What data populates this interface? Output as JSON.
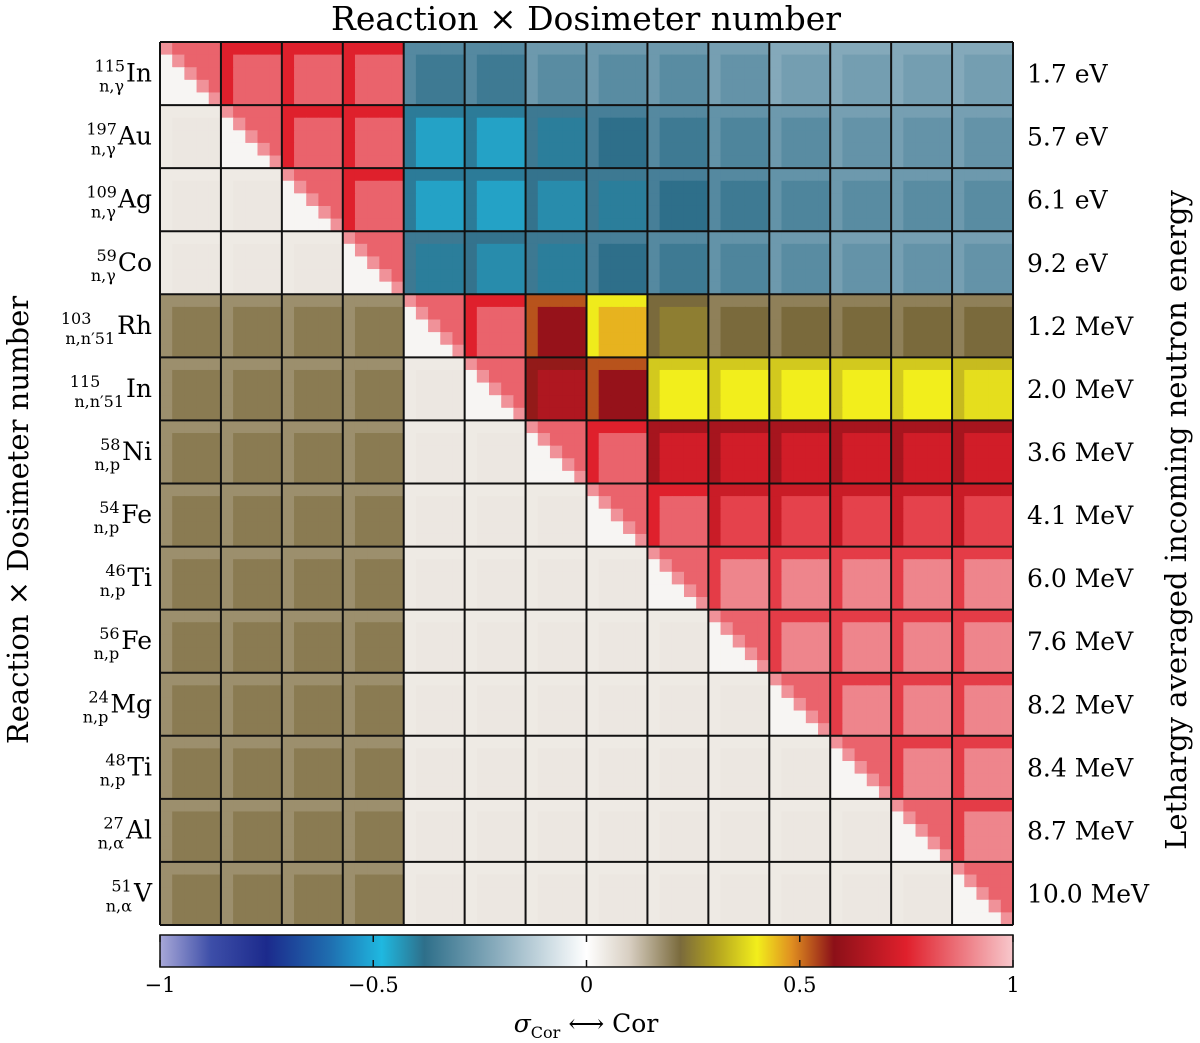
{
  "chart_data": {
    "type": "heatmap",
    "title": "Reaction × Dosimeter number",
    "ylabel": "Reaction × Dosimeter number",
    "right_label": "Lethargy averaged incoming neutron energy",
    "rows": [
      {
        "mass": "115",
        "reaction": "n,γ",
        "element": "In",
        "energy": "1.7 eV"
      },
      {
        "mass": "197",
        "reaction": "n,γ",
        "element": "Au",
        "energy": "5.7 eV"
      },
      {
        "mass": "109",
        "reaction": "n,γ",
        "element": "Ag",
        "energy": "6.1 eV"
      },
      {
        "mass": "59",
        "reaction": "n,γ",
        "element": "Co",
        "energy": "9.2 eV"
      },
      {
        "mass": "103",
        "reaction": "n,n′51",
        "element": "Rh",
        "energy": "1.2 MeV"
      },
      {
        "mass": "115",
        "reaction": "n,n′51",
        "element": "In",
        "energy": "2.0 MeV"
      },
      {
        "mass": "58",
        "reaction": "n,p",
        "element": "Ni",
        "energy": "3.6 MeV"
      },
      {
        "mass": "54",
        "reaction": "n,p",
        "element": "Fe",
        "energy": "4.1 MeV"
      },
      {
        "mass": "46",
        "reaction": "n,p",
        "element": "Ti",
        "energy": "6.0 MeV"
      },
      {
        "mass": "56",
        "reaction": "n,p",
        "element": "Fe",
        "energy": "7.6 MeV"
      },
      {
        "mass": "24",
        "reaction": "n,p",
        "element": "Mg",
        "energy": "8.2 MeV"
      },
      {
        "mass": "48",
        "reaction": "n,p",
        "element": "Ti",
        "energy": "8.4 MeV"
      },
      {
        "mass": "27",
        "reaction": "n,α",
        "element": "Al",
        "energy": "8.7 MeV"
      },
      {
        "mass": "51",
        "reaction": "n,α",
        "element": "V",
        "energy": "10.0 MeV"
      }
    ],
    "block_values": [
      [
        0.95,
        0.85,
        0.85,
        0.85,
        -0.35,
        -0.35,
        -0.3,
        -0.3,
        -0.3,
        -0.28,
        -0.25,
        -0.25,
        -0.25,
        -0.25
      ],
      [
        0.05,
        0.95,
        0.85,
        0.85,
        -0.45,
        -0.45,
        -0.4,
        -0.38,
        -0.35,
        -0.32,
        -0.3,
        -0.28,
        -0.28,
        -0.28
      ],
      [
        0.05,
        0.05,
        0.95,
        0.85,
        -0.45,
        -0.45,
        -0.42,
        -0.4,
        -0.38,
        -0.35,
        -0.32,
        -0.3,
        -0.3,
        -0.3
      ],
      [
        0.05,
        0.05,
        0.05,
        0.95,
        -0.4,
        -0.42,
        -0.4,
        -0.38,
        -0.35,
        -0.32,
        -0.3,
        -0.28,
        -0.28,
        -0.28
      ],
      [
        0.2,
        0.2,
        0.2,
        0.2,
        0.95,
        0.85,
        0.6,
        0.45,
        0.25,
        0.22,
        0.22,
        0.22,
        0.22,
        0.22
      ],
      [
        0.2,
        0.2,
        0.2,
        0.2,
        0.05,
        0.95,
        0.65,
        0.6,
        0.4,
        0.4,
        0.4,
        0.4,
        0.4,
        0.38
      ],
      [
        0.2,
        0.2,
        0.2,
        0.2,
        0.05,
        0.05,
        0.95,
        0.85,
        0.72,
        0.72,
        0.72,
        0.72,
        0.72,
        0.72
      ],
      [
        0.2,
        0.2,
        0.2,
        0.2,
        0.05,
        0.05,
        0.05,
        0.95,
        0.85,
        0.8,
        0.8,
        0.8,
        0.8,
        0.8
      ],
      [
        0.2,
        0.2,
        0.2,
        0.2,
        0.05,
        0.05,
        0.05,
        0.05,
        0.95,
        0.9,
        0.9,
        0.9,
        0.9,
        0.9
      ],
      [
        0.2,
        0.2,
        0.2,
        0.2,
        0.05,
        0.05,
        0.05,
        0.05,
        0.05,
        0.95,
        0.9,
        0.9,
        0.9,
        0.9
      ],
      [
        0.2,
        0.2,
        0.2,
        0.2,
        0.05,
        0.05,
        0.05,
        0.05,
        0.05,
        0.05,
        0.95,
        0.9,
        0.9,
        0.9
      ],
      [
        0.2,
        0.2,
        0.2,
        0.2,
        0.05,
        0.05,
        0.05,
        0.05,
        0.05,
        0.05,
        0.05,
        0.95,
        0.9,
        0.9
      ],
      [
        0.2,
        0.2,
        0.2,
        0.2,
        0.05,
        0.05,
        0.05,
        0.05,
        0.05,
        0.05,
        0.05,
        0.05,
        0.95,
        0.9
      ],
      [
        0.2,
        0.2,
        0.2,
        0.2,
        0.05,
        0.05,
        0.05,
        0.05,
        0.05,
        0.05,
        0.05,
        0.05,
        0.05,
        0.95
      ]
    ],
    "colorbar": {
      "range": [
        -1,
        1
      ],
      "ticks": [
        -1,
        -0.5,
        0,
        0.5,
        1
      ],
      "tick_labels": [
        "−1",
        "−0.5",
        "0",
        "0.5",
        "1"
      ],
      "stops": [
        {
          "v": -1.0,
          "color": "#a8a8d8"
        },
        {
          "v": -0.88,
          "color": "#3d4ea8"
        },
        {
          "v": -0.75,
          "color": "#1c2a8c"
        },
        {
          "v": -0.6,
          "color": "#1f6fb0"
        },
        {
          "v": -0.48,
          "color": "#1fb8e0"
        },
        {
          "v": -0.38,
          "color": "#2e6f8a"
        },
        {
          "v": -0.2,
          "color": "#8fb0c0"
        },
        {
          "v": 0.0,
          "color": "#ffffff"
        },
        {
          "v": 0.1,
          "color": "#d8cfc2"
        },
        {
          "v": 0.22,
          "color": "#7a6a3c"
        },
        {
          "v": 0.3,
          "color": "#b0a020"
        },
        {
          "v": 0.4,
          "color": "#f2ee1c"
        },
        {
          "v": 0.48,
          "color": "#e09020"
        },
        {
          "v": 0.58,
          "color": "#8c1018"
        },
        {
          "v": 0.75,
          "color": "#e0202c"
        },
        {
          "v": 1.0,
          "color": "#f8c8cc"
        }
      ],
      "label_sigma": "σ",
      "label_sub": "Cor",
      "label_arrow": "⟷",
      "label_cor": "Cor"
    }
  }
}
